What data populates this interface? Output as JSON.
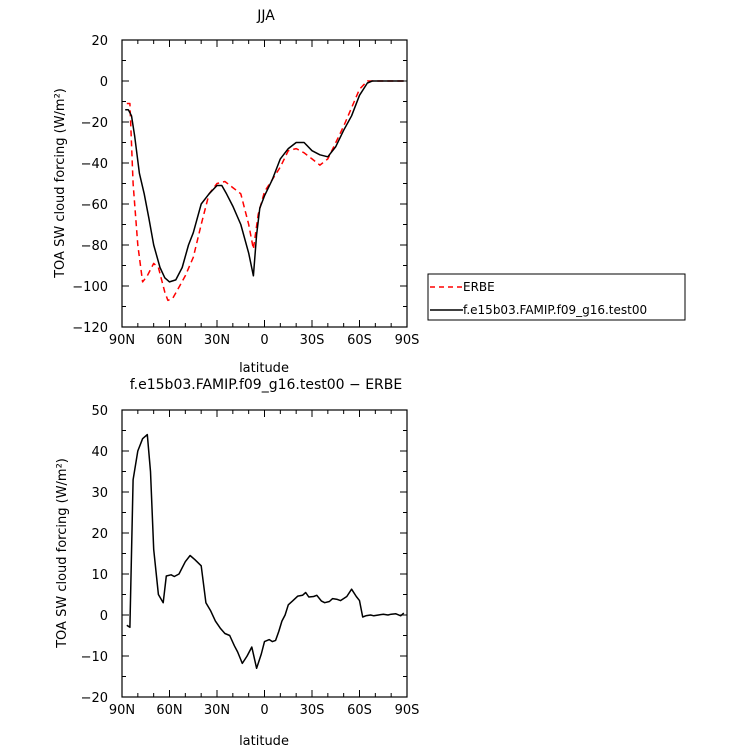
{
  "chart_data": [
    {
      "type": "line",
      "title": "JJA",
      "xlabel": "latitude",
      "ylabel": "TOA SW cloud forcing (W/m²)",
      "ylim": [
        -120,
        20
      ],
      "xlim": [
        90,
        -90
      ],
      "x_ticks": [
        90,
        60,
        30,
        0,
        -30,
        -60,
        -90
      ],
      "x_tick_labels": [
        "90N",
        "60N",
        "30N",
        "0",
        "30S",
        "60S",
        "90S"
      ],
      "y_ticks": [
        20,
        0,
        -20,
        -40,
        -60,
        -80,
        -100,
        -120
      ],
      "y_tick_labels": [
        "20",
        "0",
        "−20",
        "−40",
        "−60",
        "−80",
        "−100",
        "−120"
      ],
      "legend": {
        "placement": "right",
        "entries": [
          "ERBE",
          "f.e15b03.FAMIP.f09_g16.test00"
        ]
      },
      "series": [
        {
          "name": "ERBE",
          "color": "#ff0000",
          "dash": "dashed",
          "x": [
            87,
            85,
            83,
            80,
            77,
            74,
            70,
            67,
            63,
            61,
            58,
            55,
            50,
            45,
            40,
            35,
            30,
            25,
            20,
            15,
            10,
            7,
            4,
            0,
            -5,
            -10,
            -15,
            -20,
            -25,
            -30,
            -35,
            -40,
            -45,
            -50,
            -55,
            -60,
            -65,
            -70,
            -75,
            -80,
            -85,
            -88
          ],
          "y": [
            -11,
            -11,
            -50,
            -80,
            -98,
            -95,
            -89,
            -91,
            -103,
            -107,
            -106,
            -102,
            -95,
            -86,
            -70,
            -55,
            -50,
            -49,
            -52,
            -55,
            -70,
            -82,
            -65,
            -54,
            -48,
            -42,
            -34,
            -33,
            -35,
            -38,
            -41,
            -38,
            -30,
            -22,
            -13,
            -4,
            0,
            0,
            0,
            0,
            0,
            0
          ]
        },
        {
          "name": "f.e15b03.FAMIP.f09_g16.test00",
          "color": "#000000",
          "dash": "solid",
          "x": [
            88,
            86,
            84,
            82,
            79,
            76,
            73,
            70,
            66,
            63,
            60,
            56,
            52,
            48,
            45,
            40,
            35,
            30,
            27,
            24,
            20,
            15,
            10,
            7,
            5,
            3,
            0,
            -5,
            -10,
            -15,
            -20,
            -25,
            -30,
            -35,
            -40,
            -45,
            -50,
            -55,
            -60,
            -65,
            -68,
            -72,
            -76,
            -80,
            -85,
            -88
          ],
          "y": [
            -14,
            -14,
            -17,
            -27,
            -45,
            -55,
            -67,
            -80,
            -91,
            -96,
            -98,
            -97,
            -91,
            -80,
            -74,
            -60,
            -55,
            -51,
            -51,
            -55,
            -61,
            -70,
            -84,
            -95,
            -75,
            -62,
            -56,
            -48,
            -38,
            -33,
            -30,
            -30,
            -34,
            -36,
            -37,
            -32,
            -24,
            -17,
            -7,
            -1,
            0,
            0,
            0,
            0,
            0,
            0
          ]
        }
      ]
    },
    {
      "type": "line",
      "title": "f.e15b03.FAMIP.f09_g16.test00 − ERBE",
      "xlabel": "latitude",
      "ylabel": "TOA SW cloud forcing (W/m²)",
      "ylim": [
        -20,
        50
      ],
      "xlim": [
        90,
        -90
      ],
      "x_ticks": [
        90,
        60,
        30,
        0,
        -30,
        -60,
        -90
      ],
      "x_tick_labels": [
        "90N",
        "60N",
        "30N",
        "0",
        "30S",
        "60S",
        "90S"
      ],
      "y_ticks": [
        50,
        40,
        30,
        20,
        10,
        0,
        -10,
        -20
      ],
      "y_tick_labels": [
        "50",
        "40",
        "30",
        "20",
        "10",
        "0",
        "−10",
        "−20"
      ],
      "series": [
        {
          "color": "#000000",
          "dash": "solid",
          "x": [
            87,
            85,
            83,
            80,
            77,
            74,
            72,
            70,
            67,
            64,
            62,
            59,
            57,
            54,
            50,
            47,
            44,
            40,
            37,
            34,
            31,
            28,
            25,
            22,
            19,
            17,
            14,
            11,
            8,
            5,
            2,
            0,
            -3,
            -5,
            -7,
            -9,
            -11,
            -13,
            -15,
            -18,
            -21,
            -24,
            -26,
            -28,
            -31,
            -33,
            -36,
            -38,
            -41,
            -43,
            -46,
            -48,
            -52,
            -55,
            -58,
            -60,
            -62,
            -64,
            -67,
            -69,
            -72,
            -75,
            -78,
            -80,
            -83,
            -86,
            -88
          ],
          "y": [
            -2.5,
            -3,
            33,
            40,
            43,
            44,
            35,
            16,
            5,
            3,
            9.5,
            9.8,
            9.4,
            10,
            13,
            14.5,
            13.5,
            12,
            3,
            1,
            -1.5,
            -3.2,
            -4.5,
            -5,
            -7.5,
            -9,
            -11.8,
            -10,
            -7.8,
            -13,
            -9.5,
            -6.5,
            -6,
            -6.5,
            -6.2,
            -4,
            -1.5,
            0,
            2.5,
            3.5,
            4.6,
            4.8,
            5.5,
            4.4,
            4.5,
            4.8,
            3.4,
            3,
            3.3,
            4,
            3.8,
            3.5,
            4.5,
            6.3,
            4.5,
            3.5,
            -0.5,
            -0.2,
            0,
            -0.2,
            0,
            0.2,
            0,
            0.2,
            0.3,
            -0.2,
            0.5
          ]
        }
      ]
    }
  ]
}
